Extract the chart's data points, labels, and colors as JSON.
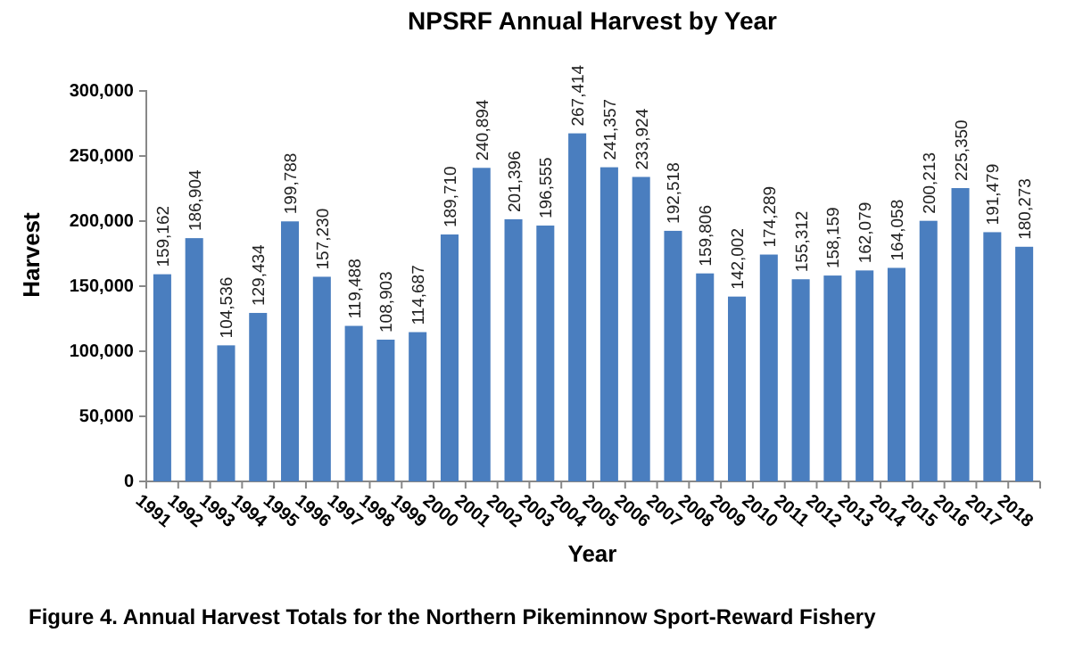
{
  "chart_data": {
    "type": "bar",
    "title": "NPSRF Annual Harvest by Year",
    "xlabel": "Year",
    "ylabel": "Harvest",
    "categories": [
      "1991",
      "1992",
      "1993",
      "1994",
      "1995",
      "1996",
      "1997",
      "1998",
      "1999",
      "2000",
      "2001",
      "2002",
      "2003",
      "2004",
      "2005",
      "2006",
      "2007",
      "2008",
      "2009",
      "2010",
      "2011",
      "2012",
      "2013",
      "2014",
      "2015",
      "2016",
      "2017",
      "2018"
    ],
    "values": [
      159162,
      186904,
      104536,
      129434,
      199788,
      157230,
      119488,
      108903,
      114687,
      189710,
      240894,
      201396,
      196555,
      267414,
      241357,
      233924,
      192518,
      159806,
      142002,
      174289,
      155312,
      158159,
      162079,
      164058,
      200213,
      225350,
      191479,
      180273
    ],
    "color": "#4a7ebf",
    "ylim": [
      0,
      300000
    ],
    "yticks": [
      {
        "value": 0,
        "label": "0"
      },
      {
        "value": 50000,
        "label": "50,000"
      },
      {
        "value": 100000,
        "label": "100,000"
      },
      {
        "value": 150000,
        "label": "150,000"
      },
      {
        "value": 200000,
        "label": "200,000"
      },
      {
        "value": 250000,
        "label": "250,000"
      },
      {
        "value": 300000,
        "label": "300,000"
      }
    ],
    "value_labels": [
      "159,162",
      "186,904",
      "104,536",
      "129,434",
      "199,788",
      "157,230",
      "119,488",
      "108,903",
      "114,687",
      "189,710",
      "240,894",
      "201,396",
      "196,555",
      "267,414",
      "241,357",
      "233,924",
      "192,518",
      "159,806",
      "142,002",
      "174,289",
      "155,312",
      "158,159",
      "162,079",
      "164,058",
      "200,213",
      "225,350",
      "191,479",
      "180,273"
    ],
    "grid": false,
    "annotations": [
      "Figure 4.  Annual Harvest Totals for the Northern Pikeminnow Sport-Reward Fishery"
    ]
  }
}
